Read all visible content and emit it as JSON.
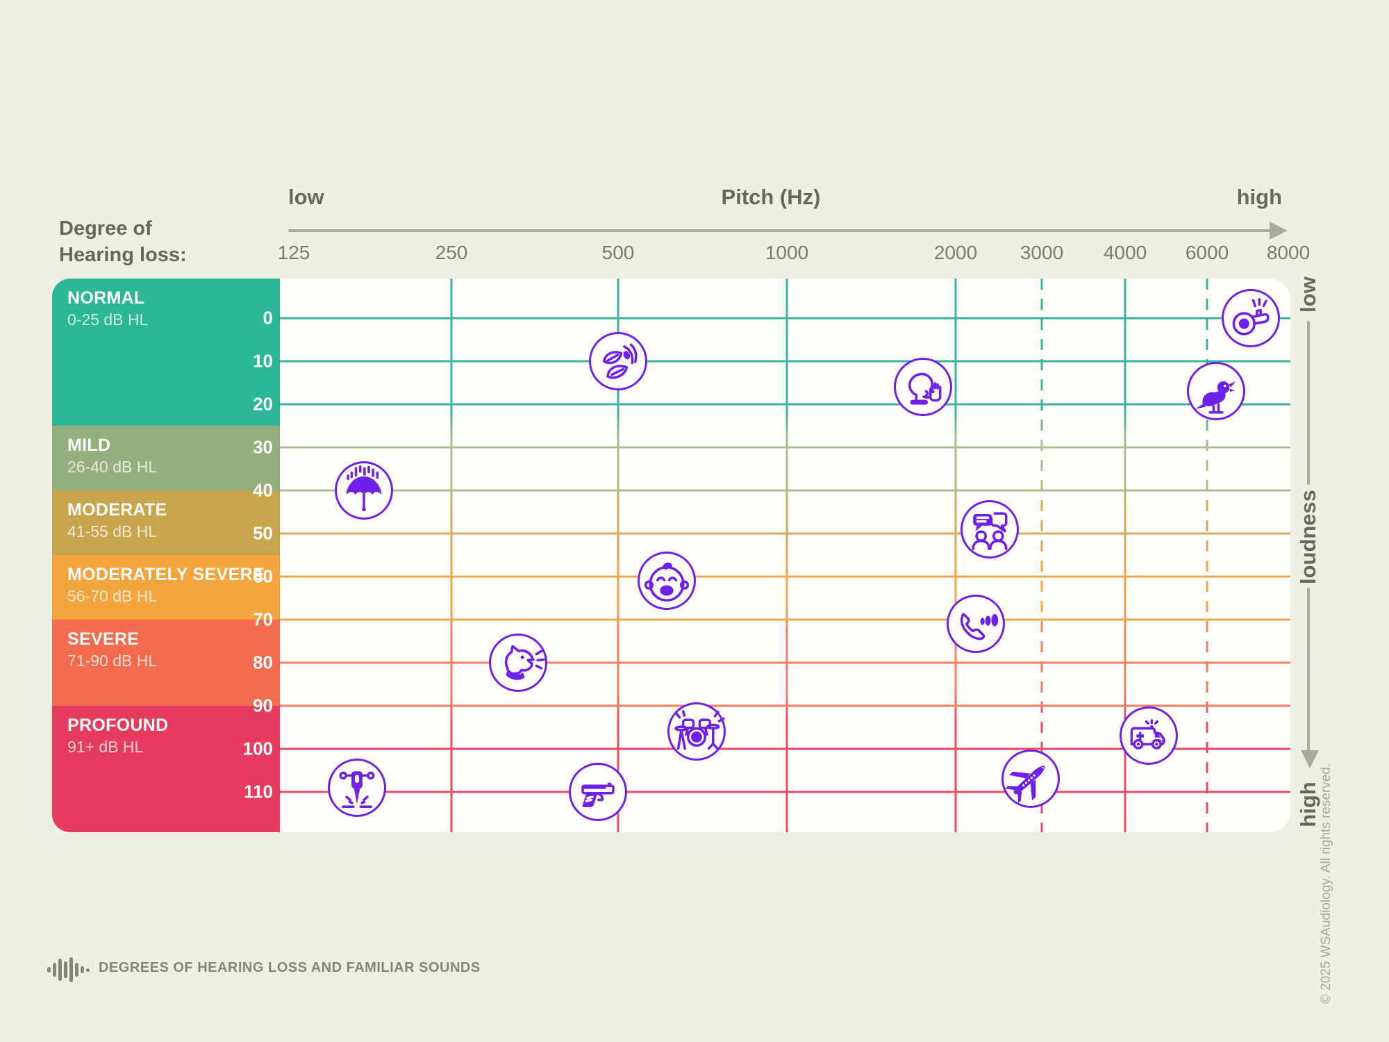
{
  "page": {
    "background": "#f0efe5",
    "panel_color": "#fffefa",
    "icon_color": "#6e20e8",
    "sidebar_heading": {
      "line1": "Degree of",
      "line2": "Hearing loss:"
    },
    "footer": {
      "logo": "sound-wave-logo",
      "title": "DEGREES OF HEARING LOSS AND FAMILIAR SOUNDS"
    },
    "copyright": "© 2025 WSAudiology. All rights reserved."
  },
  "chart_data": {
    "type": "scatter",
    "title": "Degrees of hearing loss and familiar sounds",
    "x_axis": {
      "title": "Pitch (Hz)",
      "low_label": "low",
      "high_label": "high",
      "scale": "log-octave",
      "ticks": [
        {
          "hz": 125,
          "label": "125",
          "gridline": false,
          "dashed": false
        },
        {
          "hz": 250,
          "label": "250",
          "gridline": true,
          "dashed": false
        },
        {
          "hz": 500,
          "label": "500",
          "gridline": true,
          "dashed": false
        },
        {
          "hz": 1000,
          "label": "1000",
          "gridline": true,
          "dashed": false
        },
        {
          "hz": 2000,
          "label": "2000",
          "gridline": true,
          "dashed": false
        },
        {
          "hz": 3000,
          "label": "3000",
          "gridline": true,
          "dashed": true
        },
        {
          "hz": 4000,
          "label": "4000",
          "gridline": true,
          "dashed": false
        },
        {
          "hz": 6000,
          "label": "6000",
          "gridline": true,
          "dashed": true
        },
        {
          "hz": 8000,
          "label": "8000",
          "gridline": false,
          "dashed": false
        }
      ]
    },
    "y_axis": {
      "title": "loudness",
      "low_label": "low",
      "high_label": "high",
      "unit": "dB HL",
      "ticks": [
        0,
        10,
        20,
        30,
        40,
        50,
        60,
        70,
        80,
        90,
        100,
        110
      ]
    },
    "bands": [
      {
        "name": "NORMAL",
        "range_label": "0-25 dB HL",
        "upper_db": 25,
        "color": "#2bb795",
        "line_color": "#3ab3a1"
      },
      {
        "name": "MILD",
        "range_label": "26-40 dB HL",
        "upper_db": 40,
        "color": "#92af7d",
        "line_color": "#a9bd8e"
      },
      {
        "name": "MODERATE",
        "range_label": "41-55 dB HL",
        "upper_db": 55,
        "color": "#c8a44d",
        "line_color": "#d0ab5b"
      },
      {
        "name": "MODERATELY SEVERE",
        "range_label": "56-70 dB HL",
        "upper_db": 70,
        "color": "#f4a43c",
        "line_color": "#f4a54b"
      },
      {
        "name": "SEVERE",
        "range_label": "71-90 dB HL",
        "upper_db": 90,
        "color": "#f26b4c",
        "line_color": "#f37d64"
      },
      {
        "name": "PROFOUND",
        "range_label": "91+ dB HL",
        "upper_db": null,
        "color": "#e63a5e",
        "line_color": "#ea4b66"
      }
    ],
    "sounds": [
      {
        "name": "Rustling leaves",
        "icon": "leaves-icon",
        "hz": 500,
        "db": 10
      },
      {
        "name": "Whistle",
        "icon": "whistle-icon",
        "hz": 7000,
        "db": 0
      },
      {
        "name": "Whisper",
        "icon": "whisper-icon",
        "hz": 1750,
        "db": 16
      },
      {
        "name": "Bird chirping",
        "icon": "bird-icon",
        "hz": 6200,
        "db": 17
      },
      {
        "name": "Rain",
        "icon": "umbrella-rain-icon",
        "hz": 170,
        "db": 40
      },
      {
        "name": "Conversation",
        "icon": "conversation-icon",
        "hz": 2350,
        "db": 49
      },
      {
        "name": "Baby crying",
        "icon": "baby-crying-icon",
        "hz": 610,
        "db": 61
      },
      {
        "name": "Phone ringing",
        "icon": "phone-icon",
        "hz": 2200,
        "db": 71
      },
      {
        "name": "Dog barking",
        "icon": "dog-barking-icon",
        "hz": 330,
        "db": 80
      },
      {
        "name": "Drums",
        "icon": "drums-icon",
        "hz": 690,
        "db": 96
      },
      {
        "name": "Ambulance siren",
        "icon": "ambulance-icon",
        "hz": 4500,
        "db": 97
      },
      {
        "name": "Airplane",
        "icon": "airplane-icon",
        "hz": 2850,
        "db": 107
      },
      {
        "name": "Jackhammer",
        "icon": "jackhammer-icon",
        "hz": 165,
        "db": 109
      },
      {
        "name": "Gunshot",
        "icon": "gun-icon",
        "hz": 460,
        "db": 110
      }
    ]
  }
}
